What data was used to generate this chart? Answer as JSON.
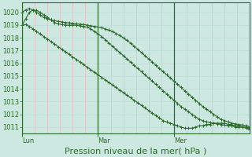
{
  "background_color": "#cce8e0",
  "grid_color_vert": "#e8bbbb",
  "grid_color_horiz": "#bbddd8",
  "line_color": "#2d6b2d",
  "marker": "+",
  "marker_size": 3,
  "linewidth": 0.8,
  "ylim": [
    1010.5,
    1020.8
  ],
  "yticks": [
    1011,
    1012,
    1013,
    1014,
    1015,
    1016,
    1017,
    1018,
    1019,
    1020
  ],
  "xlabel": "Pression niveau de la mer( hPa )",
  "xlabel_fontsize": 8,
  "tick_fontsize": 6,
  "day_labels": [
    "Lun",
    "Mar",
    "Mer"
  ],
  "day_positions": [
    0,
    0.333,
    0.667
  ],
  "n_vert_grid": 18,
  "series": [
    [
      1019.0,
      1019.05,
      1018.9,
      1018.7,
      1018.5,
      1018.3,
      1018.1,
      1017.9,
      1017.7,
      1017.5,
      1017.3,
      1017.1,
      1016.9,
      1016.7,
      1016.5,
      1016.3,
      1016.1,
      1015.9,
      1015.7,
      1015.5,
      1015.3,
      1015.1,
      1014.9,
      1014.7,
      1014.5,
      1014.3,
      1014.1,
      1013.9,
      1013.7,
      1013.5,
      1013.3,
      1013.1,
      1012.9,
      1012.7,
      1012.5,
      1012.3,
      1012.1,
      1011.9,
      1011.7,
      1011.5,
      1011.4,
      1011.3,
      1011.2,
      1011.1,
      1011.0,
      1010.9,
      1010.9,
      1010.9,
      1011.0,
      1011.1,
      1011.1,
      1011.2,
      1011.2,
      1011.3,
      1011.3,
      1011.3,
      1011.3,
      1011.2,
      1011.2,
      1011.1,
      1011.1,
      1011.0,
      1011.0,
      1010.9
    ],
    [
      1020.0,
      1020.2,
      1020.3,
      1020.2,
      1020.0,
      1019.8,
      1019.6,
      1019.5,
      1019.4,
      1019.35,
      1019.3,
      1019.25,
      1019.2,
      1019.18,
      1019.15,
      1019.1,
      1019.08,
      1019.05,
      1019.0,
      1018.95,
      1018.9,
      1018.85,
      1018.8,
      1018.7,
      1018.6,
      1018.5,
      1018.35,
      1018.2,
      1018.0,
      1017.8,
      1017.6,
      1017.35,
      1017.1,
      1016.85,
      1016.6,
      1016.35,
      1016.1,
      1015.85,
      1015.6,
      1015.35,
      1015.1,
      1014.85,
      1014.6,
      1014.35,
      1014.1,
      1013.85,
      1013.6,
      1013.35,
      1013.1,
      1012.85,
      1012.6,
      1012.4,
      1012.2,
      1012.0,
      1011.8,
      1011.6,
      1011.5,
      1011.4,
      1011.3,
      1011.25,
      1011.2,
      1011.15,
      1011.1,
      1011.0
    ],
    [
      1019.0,
      1019.5,
      1020.0,
      1020.2,
      1020.15,
      1020.0,
      1019.8,
      1019.6,
      1019.4,
      1019.2,
      1019.1,
      1019.05,
      1019.0,
      1019.0,
      1019.0,
      1019.0,
      1018.95,
      1018.9,
      1018.85,
      1018.7,
      1018.5,
      1018.3,
      1018.1,
      1017.85,
      1017.6,
      1017.35,
      1017.1,
      1016.85,
      1016.6,
      1016.35,
      1016.1,
      1015.85,
      1015.6,
      1015.35,
      1015.1,
      1014.85,
      1014.6,
      1014.35,
      1014.1,
      1013.85,
      1013.6,
      1013.35,
      1013.1,
      1012.85,
      1012.6,
      1012.4,
      1012.2,
      1012.0,
      1011.8,
      1011.6,
      1011.5,
      1011.4,
      1011.35,
      1011.3,
      1011.25,
      1011.2,
      1011.15,
      1011.1,
      1011.1,
      1011.0,
      1011.0,
      1011.0,
      1010.9,
      1010.8
    ]
  ]
}
